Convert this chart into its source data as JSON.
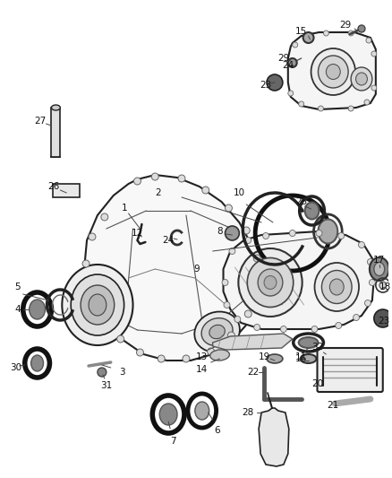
{
  "background_color": "#ffffff",
  "line_color": "#222222",
  "text_color": "#111111",
  "fig_width": 4.38,
  "fig_height": 5.33,
  "dpi": 100,
  "housing_color": "#f5f5f5",
  "housing_edge": "#111111",
  "seal_dark": "#1a1a1a",
  "seal_mid": "#555555",
  "seal_light": "#aaaaaa",
  "part_gray": "#cccccc",
  "part_lightgray": "#e8e8e8"
}
